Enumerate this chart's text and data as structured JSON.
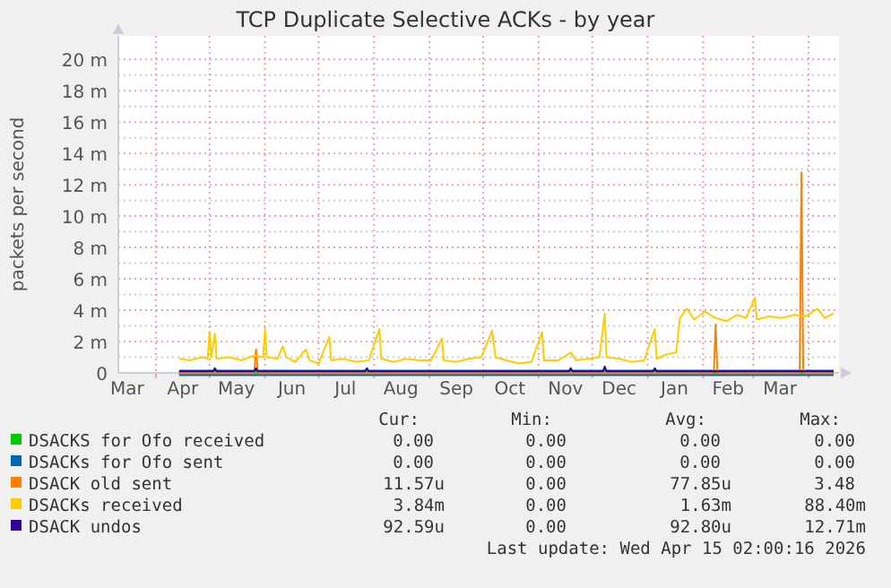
{
  "chart_data": {
    "type": "line",
    "title": "TCP Duplicate Selective ACKs - by year",
    "ylabel": "packets per second",
    "xlim": [
      "2025-03-11",
      "2026-04-18"
    ],
    "xticks": [
      {
        "value": "2025-03-16",
        "label": "Mar"
      },
      {
        "value": "2025-04-01",
        "label": null
      },
      {
        "value": "2025-04-16",
        "label": "Apr"
      },
      {
        "value": "2025-05-01",
        "label": null
      },
      {
        "value": "2025-05-16",
        "label": "May"
      },
      {
        "value": "2025-06-01",
        "label": null
      },
      {
        "value": "2025-06-16",
        "label": "Jun"
      },
      {
        "value": "2025-07-01",
        "label": null
      },
      {
        "value": "2025-07-16",
        "label": "Jul"
      },
      {
        "value": "2025-08-01",
        "label": null
      },
      {
        "value": "2025-08-16",
        "label": "Aug"
      },
      {
        "value": "2025-09-01",
        "label": null
      },
      {
        "value": "2025-09-16",
        "label": "Sep"
      },
      {
        "value": "2025-10-01",
        "label": null
      },
      {
        "value": "2025-10-16",
        "label": "Oct"
      },
      {
        "value": "2025-11-01",
        "label": null
      },
      {
        "value": "2025-11-16",
        "label": "Nov"
      },
      {
        "value": "2025-12-01",
        "label": null
      },
      {
        "value": "2025-12-16",
        "label": "Dec"
      },
      {
        "value": "2026-01-01",
        "label": null
      },
      {
        "value": "2026-01-16",
        "label": "Jan"
      },
      {
        "value": "2026-02-01",
        "label": null
      },
      {
        "value": "2026-02-15",
        "label": "Feb"
      },
      {
        "value": "2026-03-01",
        "label": null
      },
      {
        "value": "2026-03-16",
        "label": "Mar"
      },
      {
        "value": "2026-04-01",
        "label": null
      }
    ],
    "ylim": [
      0,
      21.5
    ],
    "yticks": [
      0,
      {
        "value": 1,
        "label": null
      },
      {
        "value": 2,
        "label": "2 m"
      },
      {
        "value": 3,
        "label": null
      },
      {
        "value": 4,
        "label": "4 m"
      },
      {
        "value": 5,
        "label": null
      },
      {
        "value": 6,
        "label": "6 m"
      },
      {
        "value": 7,
        "label": null
      },
      {
        "value": 8,
        "label": "8 m"
      },
      {
        "value": 9,
        "label": null
      },
      {
        "value": 10,
        "label": "10 m"
      },
      {
        "value": 11,
        "label": null
      },
      {
        "value": 12,
        "label": "12 m"
      },
      {
        "value": 13,
        "label": null
      },
      {
        "value": 14,
        "label": "14 m"
      },
      {
        "value": 15,
        "label": null
      },
      {
        "value": 16,
        "label": "16 m"
      },
      {
        "value": 17,
        "label": null
      },
      {
        "value": 18,
        "label": "18 m"
      },
      {
        "value": 19,
        "label": null
      },
      {
        "value": 20,
        "label": "20 m"
      }
    ],
    "grid": true,
    "legend": "bottom",
    "series": [
      {
        "name": "DSACKS for Ofo received",
        "color": "#00cc00",
        "x": [
          "2025-04-14",
          "2026-04-15"
        ],
        "values": [
          0,
          0
        ]
      },
      {
        "name": "DSACKs for Ofo sent",
        "color": "#0066b3",
        "x": [
          "2025-04-14",
          "2026-04-15"
        ],
        "values": [
          0,
          0
        ]
      },
      {
        "name": "DSACK old sent",
        "color": "#ff8000",
        "x": [
          "2025-04-14",
          "2025-05-26",
          "2025-05-27",
          "2025-05-28",
          "2026-02-07",
          "2026-02-08",
          "2026-02-09",
          "2026-03-27",
          "2026-03-28",
          "2026-03-29",
          "2026-04-15"
        ],
        "values": [
          0,
          0,
          1.5,
          0,
          0,
          3.1,
          0,
          0,
          12.8,
          0,
          0
        ]
      },
      {
        "name": "DSACKs received",
        "color": "#ffcc00",
        "x": [
          "2025-04-14",
          "2025-04-20",
          "2025-04-27",
          "2025-04-30",
          "2025-05-01",
          "2025-05-02",
          "2025-05-04",
          "2025-05-05",
          "2025-05-12",
          "2025-05-19",
          "2025-05-26",
          "2025-05-31",
          "2025-06-01",
          "2025-06-02",
          "2025-06-08",
          "2025-06-11",
          "2025-06-13",
          "2025-06-18",
          "2025-06-24",
          "2025-06-26",
          "2025-07-01",
          "2025-07-07",
          "2025-07-08",
          "2025-07-15",
          "2025-07-22",
          "2025-07-29",
          "2025-08-04",
          "2025-08-05",
          "2025-08-12",
          "2025-08-19",
          "2025-08-26",
          "2025-09-02",
          "2025-09-08",
          "2025-09-09",
          "2025-09-16",
          "2025-09-23",
          "2025-09-30",
          "2025-10-06",
          "2025-10-08",
          "2025-10-14",
          "2025-10-21",
          "2025-10-28",
          "2025-11-03",
          "2025-11-04",
          "2025-11-12",
          "2025-11-19",
          "2025-11-22",
          "2025-11-29",
          "2025-12-05",
          "2025-12-08",
          "2025-12-09",
          "2025-12-16",
          "2025-12-23",
          "2025-12-30",
          "2026-01-05",
          "2026-01-06",
          "2026-01-12",
          "2026-01-17",
          "2026-01-19",
          "2026-01-23",
          "2026-01-27",
          "2026-02-02",
          "2026-02-08",
          "2026-02-14",
          "2026-02-20",
          "2026-02-25",
          "2026-03-02",
          "2026-03-03",
          "2026-03-10",
          "2026-03-17",
          "2026-03-24",
          "2026-03-30",
          "2026-04-06",
          "2026-04-10",
          "2026-04-15"
        ],
        "values": [
          0.9,
          0.8,
          1.0,
          0.9,
          2.6,
          1.0,
          2.5,
          0.9,
          1.0,
          0.8,
          1.1,
          1.0,
          2.8,
          1.0,
          0.9,
          1.7,
          1.0,
          0.7,
          1.5,
          0.8,
          0.6,
          2.3,
          0.8,
          0.9,
          0.7,
          0.8,
          2.8,
          0.9,
          0.7,
          0.9,
          0.8,
          0.8,
          2.2,
          0.8,
          0.7,
          0.9,
          1.0,
          2.7,
          1.0,
          0.8,
          0.6,
          0.7,
          2.6,
          0.8,
          0.8,
          1.3,
          0.8,
          0.9,
          1.0,
          3.8,
          1.0,
          0.9,
          0.7,
          0.8,
          2.8,
          0.9,
          1.2,
          1.3,
          3.5,
          4.1,
          3.4,
          3.9,
          3.5,
          3.3,
          3.7,
          3.5,
          4.8,
          3.4,
          3.6,
          3.5,
          3.7,
          3.6,
          4.1,
          3.5,
          3.8
        ]
      },
      {
        "name": "DSACK undos",
        "color": "#330099",
        "x": [
          "2025-04-14",
          "2025-05-03",
          "2025-05-04",
          "2025-05-05",
          "2025-05-26",
          "2025-05-27",
          "2025-05-28",
          "2025-07-27",
          "2025-07-28",
          "2025-07-29",
          "2025-11-18",
          "2025-11-19",
          "2025-11-20",
          "2025-12-07",
          "2025-12-08",
          "2025-12-09",
          "2026-01-04",
          "2026-01-05",
          "2026-01-06",
          "2026-04-15"
        ],
        "values": [
          0.1,
          0.1,
          0.3,
          0.1,
          0.1,
          0.3,
          0.1,
          0.1,
          0.3,
          0.1,
          0.1,
          0.3,
          0.1,
          0.1,
          0.4,
          0.1,
          0.1,
          0.3,
          0.1,
          0.1
        ]
      }
    ],
    "annotations": [
      "Cur:",
      "Min:",
      "Avg:",
      "Max:",
      "0.00",
      "0.00",
      "0.00",
      "0.00",
      "0.00",
      "0.00",
      "0.00",
      "0.00",
      "11.57u",
      "0.00",
      "77.85u",
      "3.48",
      "3.84m",
      "0.00",
      "1.63m",
      "88.40m",
      "92.59u",
      "0.00",
      "92.80u",
      "12.71m",
      "Last update: Wed Apr 15 02:00:16 2026"
    ]
  }
}
